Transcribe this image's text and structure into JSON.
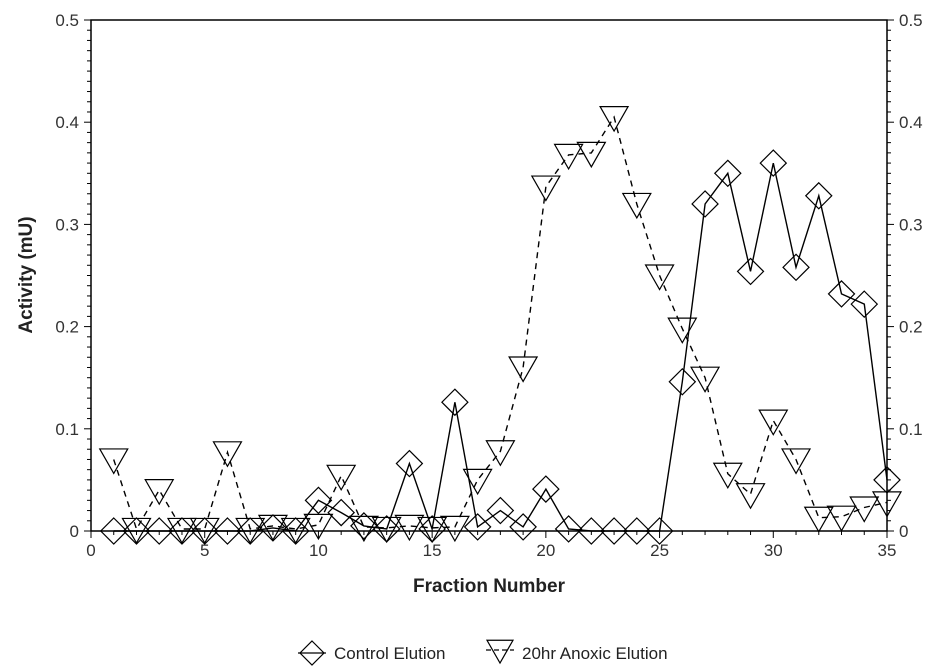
{
  "chart_data": {
    "type": "line",
    "title": "",
    "xlabel": "Fraction Number",
    "ylabel": "Activity (mU)",
    "xlim": [
      0,
      35
    ],
    "ylim": [
      0,
      0.5
    ],
    "x_ticks": [
      "0",
      "5",
      "10",
      "15",
      "20",
      "25",
      "30",
      "35"
    ],
    "y_ticks": [
      "0",
      "0.1",
      "0.2",
      "0.3",
      "0.4",
      "0.5"
    ],
    "y_ticks_right": [
      "0",
      "0.1",
      "0.2",
      "0.3",
      "0.4",
      "0.5"
    ],
    "grid": false,
    "legend_position": "bottom",
    "series": [
      {
        "name": "Control Elution",
        "marker": "diamond",
        "line_style": "solid",
        "color": "#000000",
        "points": [
          [
            1,
            0
          ],
          [
            2,
            0
          ],
          [
            3,
            0
          ],
          [
            4,
            0
          ],
          [
            5,
            0
          ],
          [
            6,
            0
          ],
          [
            7,
            0
          ],
          [
            8,
            0.003
          ],
          [
            9,
            0
          ],
          [
            10,
            0.03
          ],
          [
            11,
            0.018
          ],
          [
            12,
            0.005
          ],
          [
            13,
            0.002
          ],
          [
            14,
            0.066
          ],
          [
            15,
            0.002
          ],
          [
            16,
            0.126
          ],
          [
            17,
            0.004
          ],
          [
            18,
            0.02
          ],
          [
            19,
            0.004
          ],
          [
            20,
            0.041
          ],
          [
            21,
            0.002
          ],
          [
            22,
            0
          ],
          [
            23,
            0
          ],
          [
            24,
            0
          ],
          [
            25,
            0
          ],
          [
            26,
            0.146
          ],
          [
            27,
            0.32
          ],
          [
            28,
            0.35
          ],
          [
            29,
            0.254
          ],
          [
            30,
            0.36
          ],
          [
            31,
            0.258
          ],
          [
            32,
            0.328
          ],
          [
            33,
            0.232
          ],
          [
            34,
            0.222
          ],
          [
            35,
            0.05
          ]
        ]
      },
      {
        "name": "20hr Anoxic Elution",
        "marker": "triangle-down",
        "line_style": "dashed",
        "color": "#000000",
        "points": [
          [
            1,
            0.07
          ],
          [
            2,
            0.002
          ],
          [
            3,
            0.04
          ],
          [
            4,
            0.002
          ],
          [
            5,
            0.002
          ],
          [
            6,
            0.077
          ],
          [
            7,
            0.002
          ],
          [
            8,
            0.005
          ],
          [
            9,
            0.002
          ],
          [
            10,
            0.006
          ],
          [
            11,
            0.054
          ],
          [
            12,
            0.004
          ],
          [
            13,
            0.003
          ],
          [
            14,
            0.005
          ],
          [
            15,
            0.003
          ],
          [
            16,
            0.004
          ],
          [
            17,
            0.05
          ],
          [
            18,
            0.078
          ],
          [
            19,
            0.16
          ],
          [
            20,
            0.337
          ],
          [
            21,
            0.368
          ],
          [
            22,
            0.37
          ],
          [
            23,
            0.405
          ],
          [
            24,
            0.32
          ],
          [
            25,
            0.25
          ],
          [
            26,
            0.198
          ],
          [
            27,
            0.15
          ],
          [
            28,
            0.056
          ],
          [
            29,
            0.036
          ],
          [
            30,
            0.108
          ],
          [
            31,
            0.07
          ],
          [
            32,
            0.013
          ],
          [
            33,
            0.014
          ],
          [
            34,
            0.023
          ],
          [
            35,
            0.028
          ]
        ]
      }
    ]
  }
}
